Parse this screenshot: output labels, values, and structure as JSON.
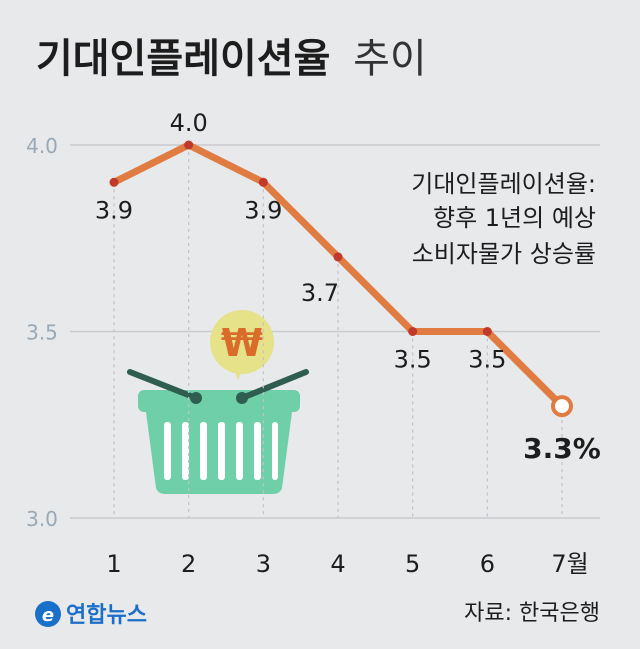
{
  "title": {
    "bold": "기대인플레이션율",
    "light": "추이"
  },
  "note": {
    "heading": "기대인플레이션율:",
    "line1": "향후 1년의 예상",
    "line2": "소비자물가 상승률"
  },
  "source": "자료: 한국은행",
  "logo_text": "연합뉴스",
  "colors": {
    "line": "#e07b42",
    "point": "#c0392b",
    "grid": "#c9cbcf",
    "basket": "#6ecfa9",
    "basket_handle": "#2f5d50",
    "coin": "#e5e28a",
    "logo": "#1a6fc9"
  },
  "icons": {
    "basket": "shopping-basket-icon",
    "coin": "won-coin-icon"
  },
  "chart_data": {
    "type": "line",
    "categories": [
      "1",
      "2",
      "3",
      "4",
      "5",
      "6",
      "7월"
    ],
    "values": [
      3.9,
      4.0,
      3.9,
      3.7,
      3.5,
      3.5,
      3.3
    ],
    "labels": [
      "3.9",
      "4.0",
      "3.9",
      "3.7",
      "3.5",
      "3.5",
      "3.3%"
    ],
    "yticks": [
      "4.0",
      "3.5",
      "3.0"
    ],
    "ylim": [
      3.0,
      4.0
    ],
    "grid": true
  }
}
